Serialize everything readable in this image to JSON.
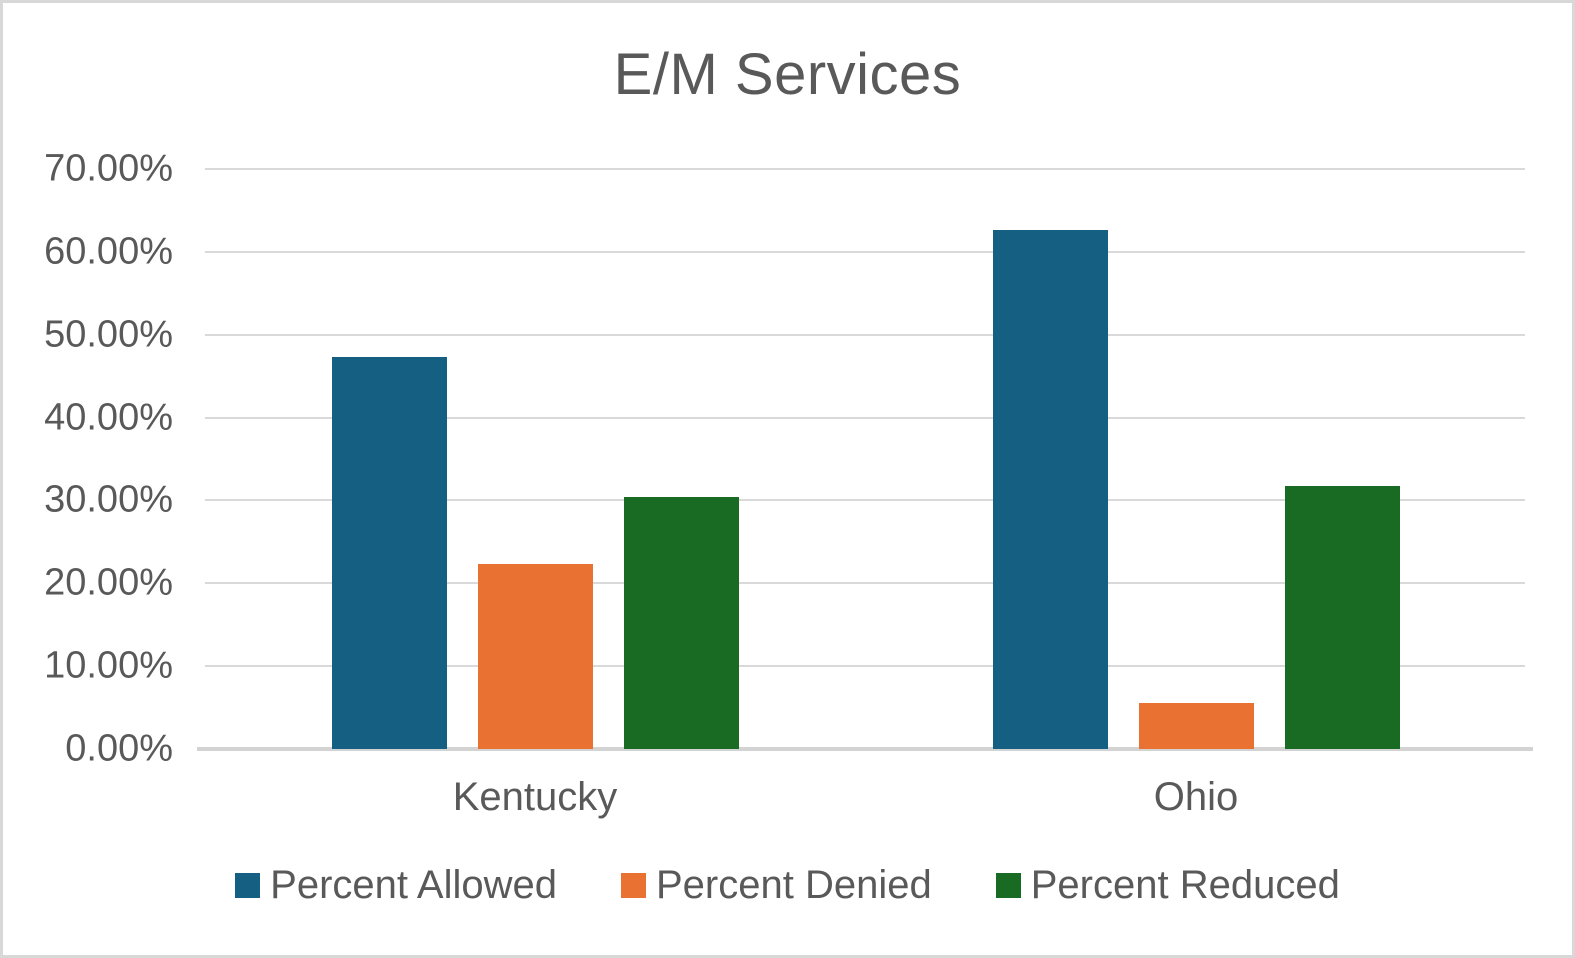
{
  "chart_data": {
    "type": "bar",
    "title": "E/M Services",
    "categories": [
      "Kentucky",
      "Ohio"
    ],
    "series": [
      {
        "name": "Percent Allowed",
        "color": "#156082",
        "values": [
          47.3,
          62.7
        ]
      },
      {
        "name": "Percent Denied",
        "color": "#E97132",
        "values": [
          22.3,
          5.5
        ]
      },
      {
        "name": "Percent Reduced",
        "color": "#196B24",
        "values": [
          30.4,
          31.7
        ]
      }
    ],
    "ylim": [
      0,
      70
    ],
    "y_ticks": [
      {
        "value": 0,
        "label": "0.00%"
      },
      {
        "value": 10,
        "label": "10.00%"
      },
      {
        "value": 20,
        "label": "20.00%"
      },
      {
        "value": 30,
        "label": "30.00%"
      },
      {
        "value": 40,
        "label": "40.00%"
      },
      {
        "value": 50,
        "label": "50.00%"
      },
      {
        "value": 60,
        "label": "60.00%"
      },
      {
        "value": 70,
        "label": "70.00%"
      }
    ],
    "grid": true,
    "legend_position": "bottom",
    "text_color": "#595959",
    "gridline_color": "#D9D9D9"
  }
}
